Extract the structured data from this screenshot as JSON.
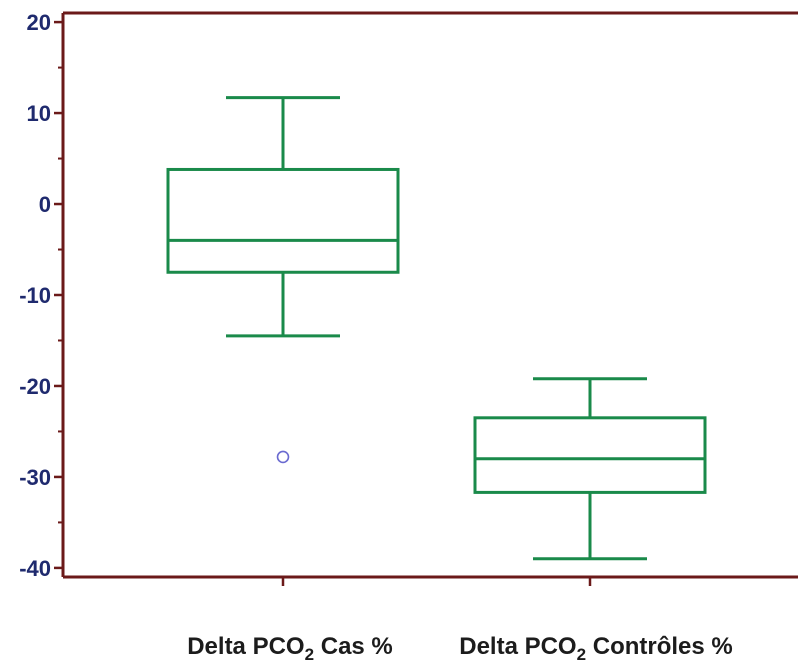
{
  "chart_data": {
    "type": "box",
    "title": "",
    "xlabel": "",
    "ylabel": "",
    "ylim": [
      -41,
      21
    ],
    "yticks": [
      "20",
      "10",
      "0",
      "-10",
      "-20",
      "-30",
      "-40"
    ],
    "ytick_values": [
      20,
      10,
      0,
      -10,
      -20,
      -30,
      -40
    ],
    "minor_tick_step": 5,
    "grid": false,
    "categories": [
      {
        "prefix": "Delta PCO",
        "sub": "2",
        "suffix": " Cas %"
      },
      {
        "prefix": "Delta PCO",
        "sub": "2",
        "suffix": " Contrôles %"
      }
    ],
    "boxes": [
      {
        "whisker_low": -14.5,
        "q1": -7.5,
        "median": -4,
        "q3": 3.8,
        "whisker_high": 11.7,
        "outliers": [
          -27.8
        ]
      },
      {
        "whisker_low": -39,
        "q1": -31.7,
        "median": -28,
        "q3": -23.5,
        "whisker_high": -19.2,
        "outliers": []
      }
    ],
    "colors": {
      "axis": "#6b1a1a",
      "tick_label": "#1f2a6e",
      "box": "#1a8a4a",
      "outlier": "#6a6ad0",
      "category_label": "#1c1c1c"
    }
  }
}
